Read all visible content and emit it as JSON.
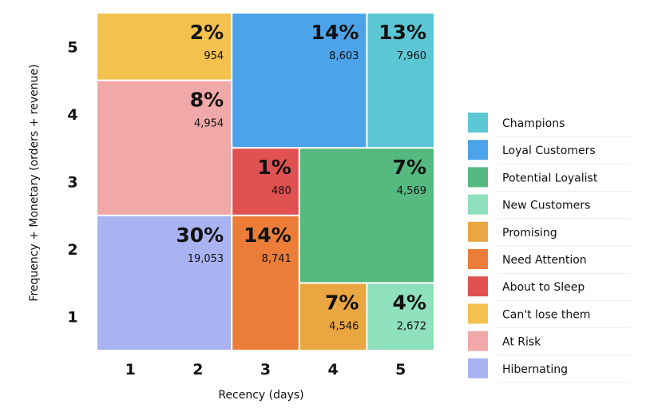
{
  "chart_data": {
    "type": "heatmap",
    "title": "",
    "xlabel": "Recency (days)",
    "ylabel": "Frequency + Monetary (orders + revenue)",
    "x_ticks": [
      "1",
      "2",
      "3",
      "4",
      "5"
    ],
    "y_ticks": [
      "1",
      "2",
      "3",
      "4",
      "5"
    ],
    "xlim": [
      0.5,
      5.5
    ],
    "ylim": [
      0.5,
      5.5
    ],
    "legend_position": "right",
    "segments": [
      {
        "name": "Can't lose them",
        "color": "#F2C14E",
        "recency": [
          1,
          2
        ],
        "frequency_monetary": [
          5,
          5
        ],
        "percent": "2%",
        "count": "954"
      },
      {
        "name": "Loyal Customers",
        "color": "#4DA3EA",
        "recency": [
          3,
          4
        ],
        "frequency_monetary": [
          4,
          5
        ],
        "percent": "14%",
        "count": "8,603"
      },
      {
        "name": "Champions",
        "color": "#5BC6D4",
        "recency": [
          5,
          5
        ],
        "frequency_monetary": [
          4,
          5
        ],
        "percent": "13%",
        "count": "7,960"
      },
      {
        "name": "At Risk",
        "color": "#F0A8A8",
        "recency": [
          1,
          2
        ],
        "frequency_monetary": [
          3,
          4
        ],
        "percent": "8%",
        "count": "4,954"
      },
      {
        "name": "About to Sleep",
        "color": "#E05252",
        "recency": [
          3,
          3
        ],
        "frequency_monetary": [
          3,
          3
        ],
        "percent": "1%",
        "count": "480"
      },
      {
        "name": "Potential Loyalist",
        "color": "#55B980",
        "recency": [
          4,
          5
        ],
        "frequency_monetary": [
          2,
          3
        ],
        "percent": "7%",
        "count": "4,569"
      },
      {
        "name": "Hibernating",
        "color": "#A9B3F2",
        "recency": [
          1,
          2
        ],
        "frequency_monetary": [
          1,
          2
        ],
        "percent": "30%",
        "count": "19,053"
      },
      {
        "name": "Need Attention",
        "color": "#EB7D38",
        "recency": [
          3,
          3
        ],
        "frequency_monetary": [
          1,
          2
        ],
        "percent": "14%",
        "count": "8,741"
      },
      {
        "name": "Promising",
        "color": "#EAA640",
        "recency": [
          4,
          4
        ],
        "frequency_monetary": [
          1,
          1
        ],
        "percent": "7%",
        "count": "4,546"
      },
      {
        "name": "New Customers",
        "color": "#8FE0BC",
        "recency": [
          5,
          5
        ],
        "frequency_monetary": [
          1,
          1
        ],
        "percent": "4%",
        "count": "2,672"
      }
    ],
    "legend": [
      {
        "name": "Champions",
        "color": "#5BC6D4"
      },
      {
        "name": "Loyal Customers",
        "color": "#4DA3EA"
      },
      {
        "name": "Potential Loyalist",
        "color": "#55B980"
      },
      {
        "name": "New Customers",
        "color": "#8FE0BC"
      },
      {
        "name": "Promising",
        "color": "#EAA640"
      },
      {
        "name": "Need Attention",
        "color": "#EB7D38"
      },
      {
        "name": "About to Sleep",
        "color": "#E05252"
      },
      {
        "name": "Can't lose them",
        "color": "#F2C14E"
      },
      {
        "name": "At Risk",
        "color": "#F0A8A8"
      },
      {
        "name": "Hibernating",
        "color": "#A9B3F2"
      }
    ]
  }
}
